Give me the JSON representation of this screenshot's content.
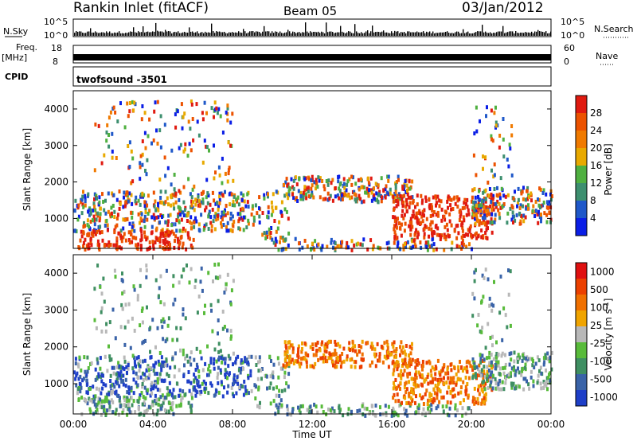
{
  "header": {
    "station": "Rankin Inlet (fitACF)",
    "beam": "Beam 05",
    "date": "03/Jan/2012"
  },
  "nsky_panel": {
    "label": "N.Sky",
    "top_tick": "10^5",
    "bottom_tick": "10^0",
    "right_label": "N.Search",
    "right_top_tick": "10^5",
    "right_bottom_tick": "10^0"
  },
  "freq_panel": {
    "label_line1": "Freq.",
    "label_line2": "[MHz]",
    "left_top_tick": "18",
    "left_bottom_tick": "8",
    "right_top_tick": "60",
    "right_bottom_tick": "0",
    "right_label": "Nave"
  },
  "cpid_panel": {
    "label": "CPID",
    "program": "twofsound  -3501"
  },
  "chart_data": [
    {
      "type": "heatmap",
      "quantity": "Power",
      "ylabel": "Slant Range [km]",
      "ylim": [
        180,
        4500
      ],
      "yticks": [
        "1000",
        "2000",
        "3000",
        "4000"
      ],
      "xlim_hours": [
        0,
        24
      ],
      "colorbar_label": "Power [dB]",
      "colorbar_ticks": [
        "4",
        "8",
        "12",
        "16",
        "20",
        "24",
        "28"
      ],
      "colorbar_colors": [
        "#0a1ee6",
        "#1f58c9",
        "#3d8f6f",
        "#4fb040",
        "#e8a900",
        "#f07a00",
        "#ec5200",
        "#e01a10"
      ]
    },
    {
      "type": "heatmap",
      "quantity": "Velocity",
      "ylabel": "Slant Range [km]",
      "ylim": [
        180,
        4500
      ],
      "yticks": [
        "1000",
        "2000",
        "3000",
        "4000"
      ],
      "xlim_hours": [
        0,
        24
      ],
      "xticks": [
        "00:00",
        "04:00",
        "08:00",
        "12:00",
        "16:00",
        "20:00",
        "00:00"
      ],
      "xlabel": "Time UT",
      "colorbar_label": "Velocity [m s",
      "colorbar_label_exp": "-1",
      "colorbar_label_end": "]",
      "colorbar_ticks": [
        "1000",
        "500",
        "100",
        "25",
        "-25",
        "-100",
        "-500",
        "-1000"
      ],
      "colorbar_colors": [
        "#1e3fc8",
        "#3a63a8",
        "#3f8f62",
        "#58bb3a",
        "#b8b8b8",
        "#f0a400",
        "#f07000",
        "#ec4000",
        "#e01010"
      ]
    }
  ]
}
